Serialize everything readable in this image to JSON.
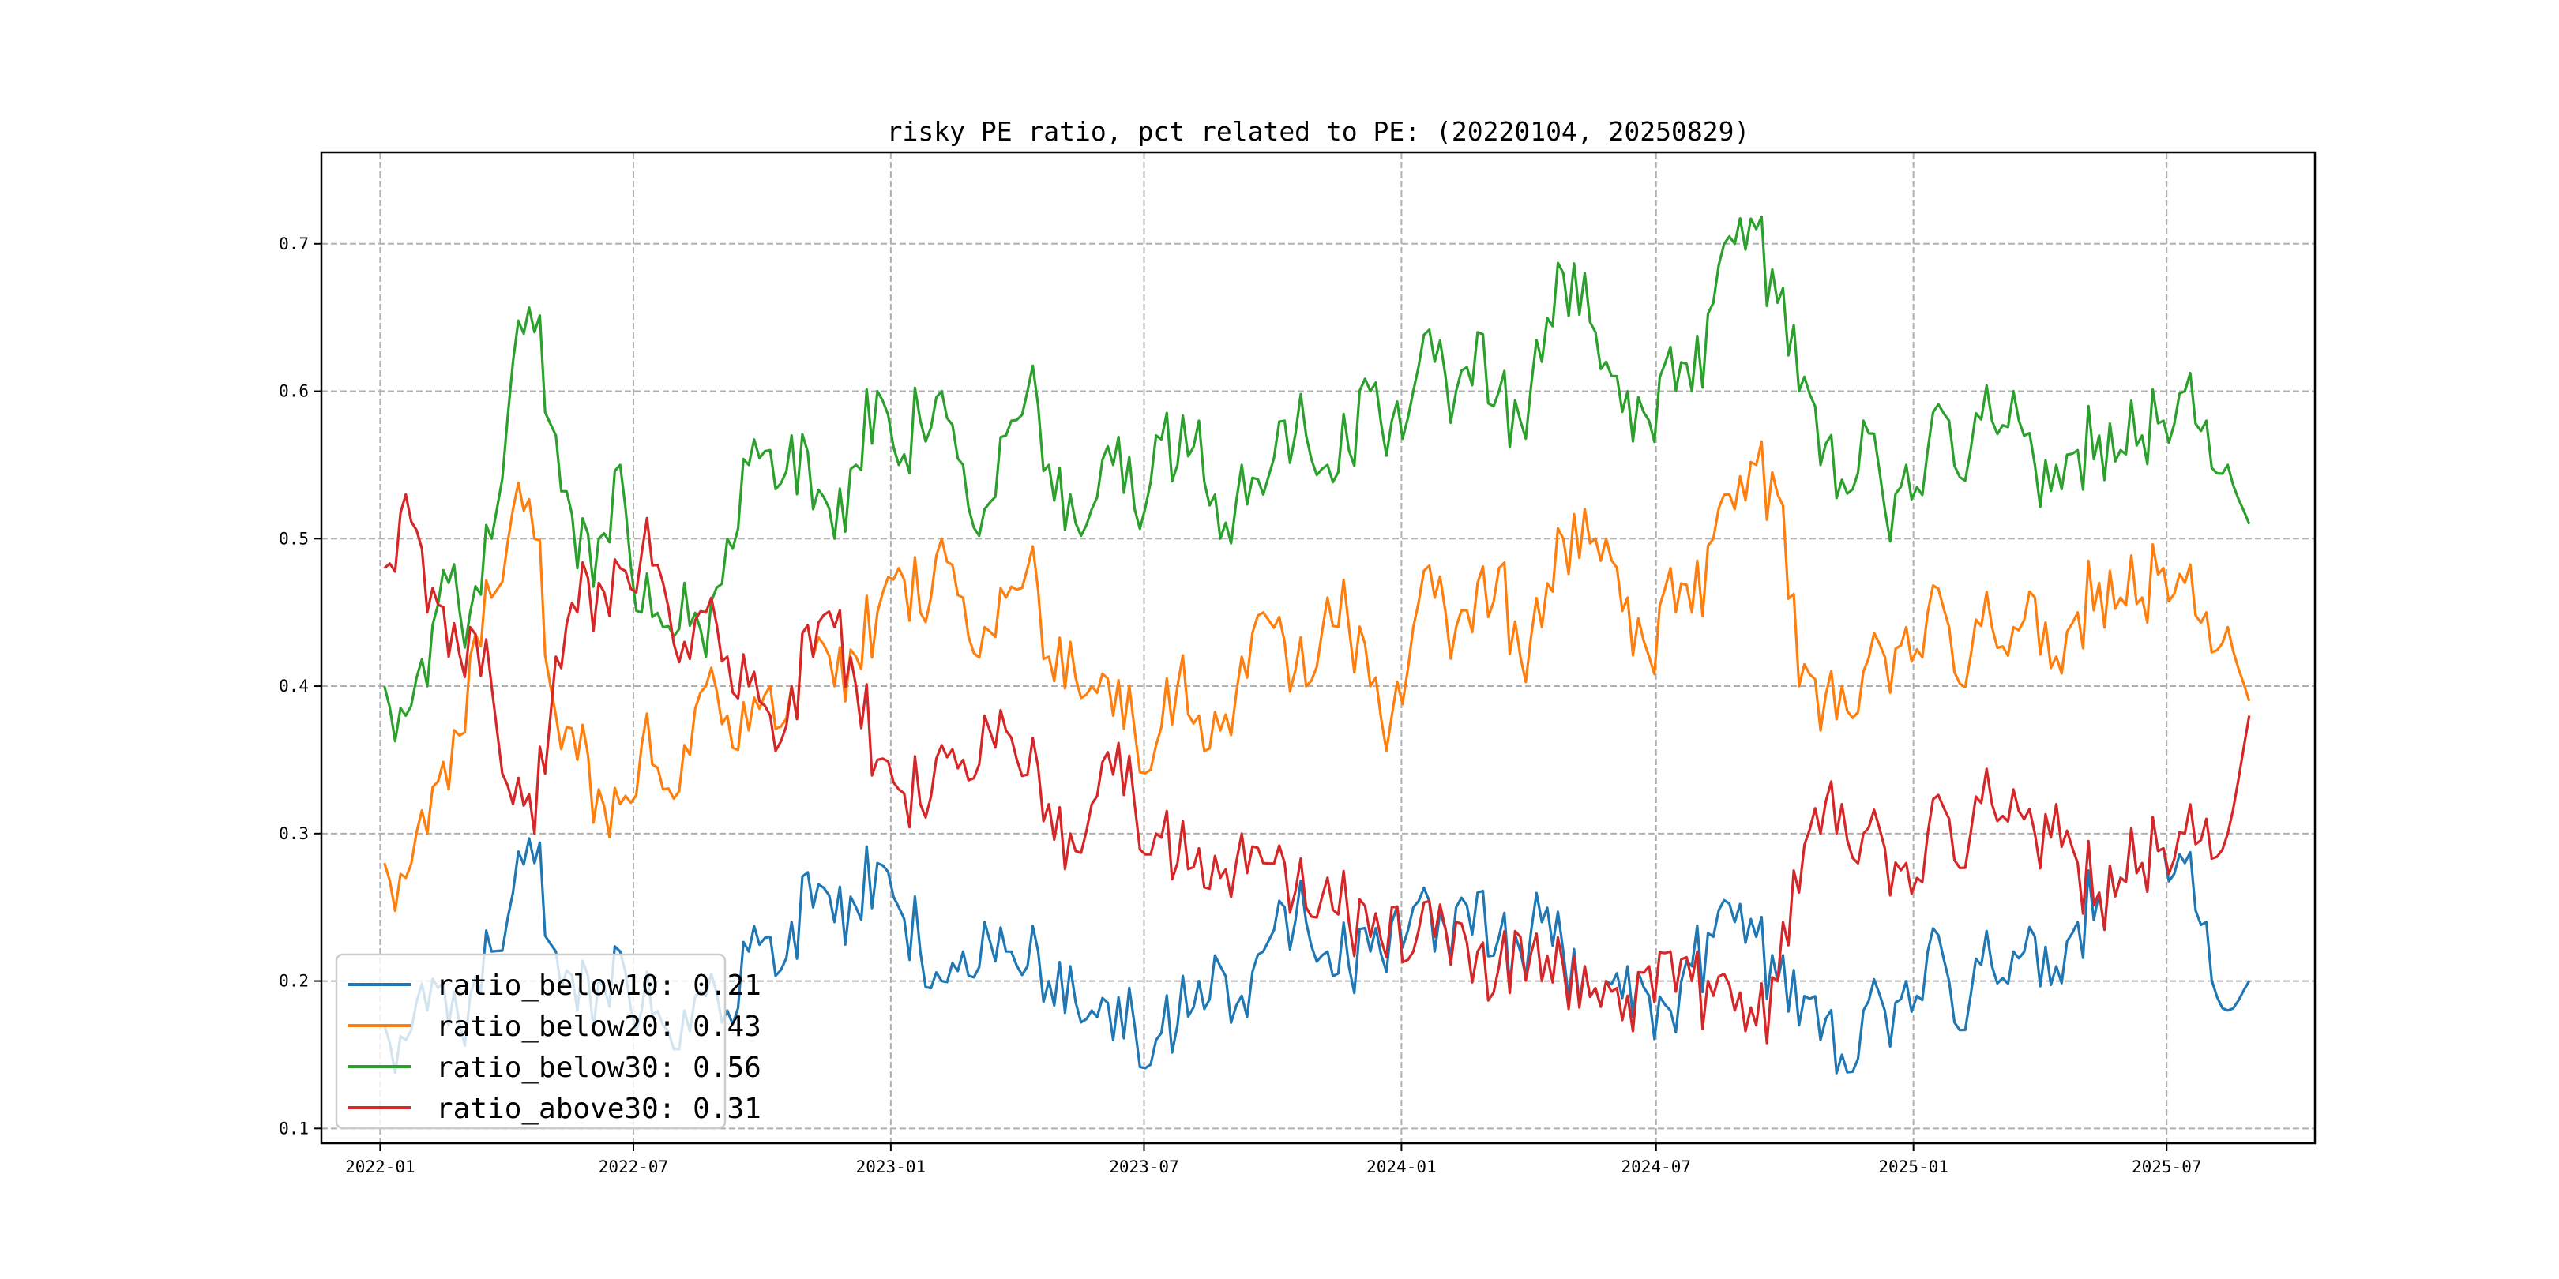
{
  "chart_data": {
    "type": "line",
    "title": "risky PE ratio, pct related to PE: (20220104, 20250829)",
    "xlabel": "",
    "ylabel": "",
    "x_start": "2022-01-04",
    "x_end": "2025-08-29",
    "x_sampling": "semi-monthly (approximate)",
    "xlim": [
      "2021-11-20",
      "2025-10-15"
    ],
    "ylim": [
      0.09,
      0.762
    ],
    "x_ticks": [
      "2022-01",
      "2022-07",
      "2023-01",
      "2023-07",
      "2024-01",
      "2024-07",
      "2025-01",
      "2025-07"
    ],
    "y_ticks": [
      "0.1",
      "0.2",
      "0.3",
      "0.4",
      "0.5",
      "0.6",
      "0.7"
    ],
    "grid": true,
    "legend_position": "lower-left",
    "series": [
      {
        "name": "ratio_below10",
        "label": "ratio_below10: 0.21",
        "color": "#1f77b4",
        "values": [
          0.17,
          0.16,
          0.18,
          0.17,
          0.19,
          0.22,
          0.26,
          0.28,
          0.22,
          0.18,
          0.2,
          0.22,
          0.18,
          0.17,
          0.18,
          0.19,
          0.18,
          0.22,
          0.23,
          0.24,
          0.25,
          0.24,
          0.25,
          0.28,
          0.25,
          0.22,
          0.2,
          0.22,
          0.24,
          0.22,
          0.21,
          0.2,
          0.21,
          0.18,
          0.16,
          0.17,
          0.16,
          0.17,
          0.2,
          0.21,
          0.19,
          0.22,
          0.25,
          0.24,
          0.22,
          0.21,
          0.22,
          0.24,
          0.25,
          0.22,
          0.25,
          0.26,
          0.23,
          0.22,
          0.24,
          0.22,
          0.21,
          0.2,
          0.21,
          0.19,
          0.18,
          0.21,
          0.23,
          0.24,
          0.23,
          0.2,
          0.17,
          0.16,
          0.15,
          0.18,
          0.18,
          0.2,
          0.22,
          0.2,
          0.19,
          0.21,
          0.22,
          0.23,
          0.21,
          0.24,
          0.26,
          0.27,
          0.28,
          0.29,
          0.28,
          0.24,
          0.18,
          0.2
        ]
      },
      {
        "name": "ratio_below20",
        "label": "ratio_below20: 0.43",
        "color": "#ff7f0e",
        "values": [
          0.28,
          0.27,
          0.3,
          0.33,
          0.42,
          0.46,
          0.52,
          0.5,
          0.38,
          0.35,
          0.33,
          0.32,
          0.36,
          0.33,
          0.36,
          0.4,
          0.38,
          0.37,
          0.4,
          0.4,
          0.42,
          0.4,
          0.42,
          0.45,
          0.48,
          0.45,
          0.5,
          0.46,
          0.44,
          0.46,
          0.48,
          0.42,
          0.43,
          0.4,
          0.38,
          0.37,
          0.36,
          0.4,
          0.38,
          0.37,
          0.42,
          0.45,
          0.43,
          0.4,
          0.46,
          0.44,
          0.4,
          0.38,
          0.44,
          0.46,
          0.44,
          0.47,
          0.48,
          0.42,
          0.44,
          0.5,
          0.52,
          0.5,
          0.46,
          0.42,
          0.48,
          0.45,
          0.5,
          0.52,
          0.55,
          0.53,
          0.4,
          0.37,
          0.4,
          0.41,
          0.42,
          0.44,
          0.45,
          0.44,
          0.42,
          0.44,
          0.44,
          0.46,
          0.42,
          0.45,
          0.47,
          0.46,
          0.46,
          0.48,
          0.47,
          0.45,
          0.44,
          0.39
        ]
      },
      {
        "name": "ratio_below30",
        "label": "ratio_below30: 0.56",
        "color": "#2ca02c",
        "values": [
          0.4,
          0.38,
          0.4,
          0.47,
          0.45,
          0.5,
          0.62,
          0.64,
          0.57,
          0.48,
          0.5,
          0.55,
          0.45,
          0.44,
          0.47,
          0.42,
          0.5,
          0.55,
          0.56,
          0.57,
          0.52,
          0.5,
          0.55,
          0.6,
          0.55,
          0.58,
          0.6,
          0.55,
          0.52,
          0.57,
          0.6,
          0.55,
          0.53,
          0.52,
          0.55,
          0.52,
          0.57,
          0.55,
          0.58,
          0.5,
          0.55,
          0.53,
          0.58,
          0.57,
          0.55,
          0.56,
          0.6,
          0.58,
          0.6,
          0.62,
          0.6,
          0.64,
          0.6,
          0.58,
          0.62,
          0.68,
          0.68,
          0.62,
          0.6,
          0.58,
          0.63,
          0.6,
          0.66,
          0.7,
          0.71,
          0.66,
          0.6,
          0.55,
          0.54,
          0.58,
          0.52,
          0.55,
          0.56,
          0.58,
          0.56,
          0.58,
          0.6,
          0.55,
          0.55,
          0.56,
          0.57,
          0.56,
          0.57,
          0.58,
          0.6,
          0.58,
          0.55,
          0.51
        ]
      },
      {
        "name": "ratio_above30",
        "label": "ratio_above30: 0.31",
        "color": "#d62728",
        "values": [
          0.48,
          0.53,
          0.45,
          0.42,
          0.44,
          0.4,
          0.32,
          0.3,
          0.42,
          0.45,
          0.47,
          0.48,
          0.49,
          0.47,
          0.43,
          0.45,
          0.42,
          0.4,
          0.38,
          0.4,
          0.42,
          0.44,
          0.4,
          0.35,
          0.33,
          0.32,
          0.36,
          0.35,
          0.38,
          0.37,
          0.34,
          0.32,
          0.3,
          0.32,
          0.34,
          0.32,
          0.3,
          0.28,
          0.29,
          0.27,
          0.3,
          0.28,
          0.28,
          0.25,
          0.27,
          0.24,
          0.23,
          0.25,
          0.22,
          0.23,
          0.24,
          0.22,
          0.21,
          0.23,
          0.2,
          0.21,
          0.21,
          0.2,
          0.19,
          0.21,
          0.22,
          0.2,
          0.19,
          0.18,
          0.17,
          0.2,
          0.26,
          0.3,
          0.32,
          0.3,
          0.29,
          0.28,
          0.3,
          0.31,
          0.3,
          0.32,
          0.33,
          0.3,
          0.32,
          0.28,
          0.26,
          0.27,
          0.28,
          0.29,
          0.3,
          0.31,
          0.3,
          0.38
        ]
      }
    ]
  }
}
